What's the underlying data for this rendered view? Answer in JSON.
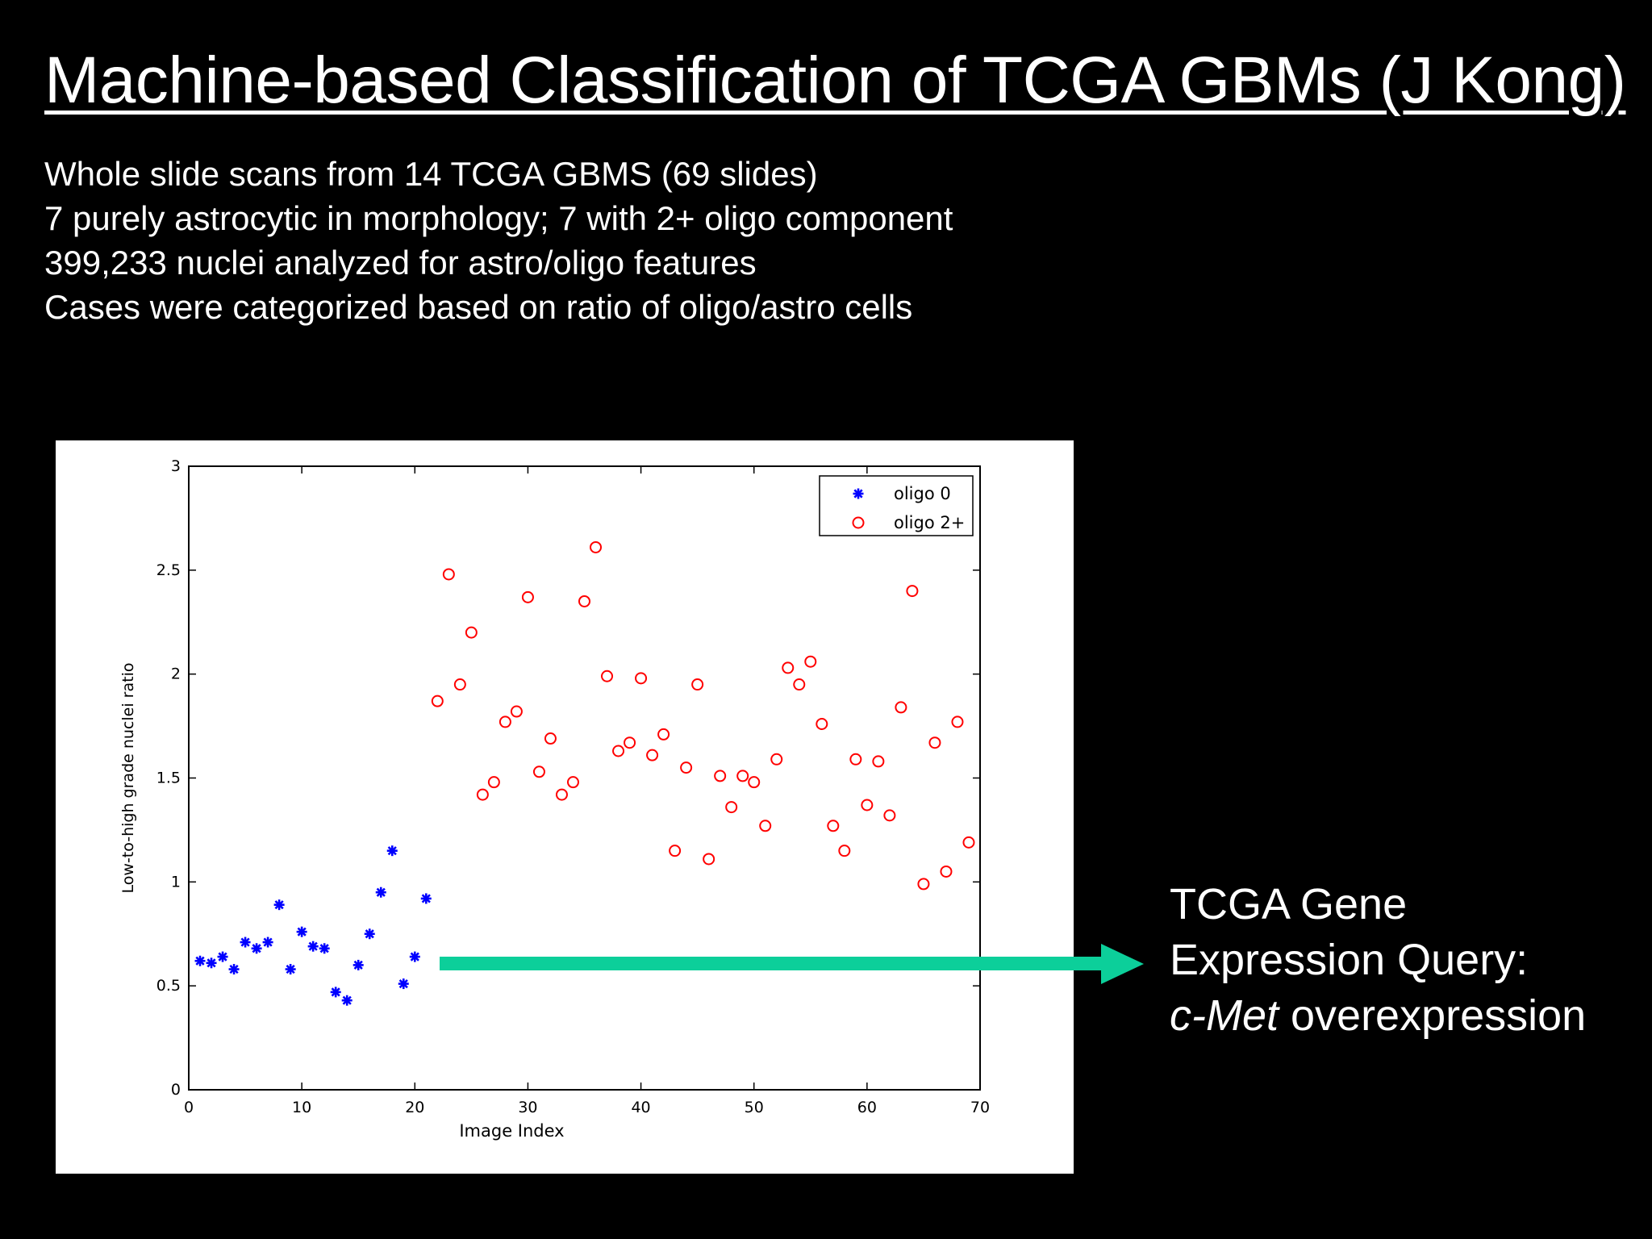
{
  "slide": {
    "title": "Machine-based Classification of TCGA GBMs (J Kong)",
    "bullets": [
      "Whole slide scans from 14 TCGA GBMS (69 slides)",
      "7 purely astrocytic in morphology; 7 with 2+ oligo component",
      "399,233 nuclei analyzed for astro/oligo features",
      "Cases were categorized based on ratio of oligo/astro cells"
    ],
    "callout": {
      "line1": "TCGA Gene",
      "line2": "Expression Query:",
      "line3_italic": "c-Met",
      "line3_rest": " overexpression"
    },
    "arrow_color": "#0ccf9a"
  },
  "chart_data": {
    "type": "scatter",
    "xlabel": "Image Index",
    "ylabel": "Low-to-high grade nuclei ratio",
    "xlim": [
      0,
      70
    ],
    "ylim": [
      0,
      3
    ],
    "xticks": [
      0,
      10,
      20,
      30,
      40,
      50,
      60,
      70
    ],
    "yticks": [
      0,
      0.5,
      1,
      1.5,
      2,
      2.5,
      3
    ],
    "ytick_labels": [
      "0",
      "0.5",
      "1",
      "1.5",
      "2",
      "2.5",
      "3"
    ],
    "grid": false,
    "legend": "top-right",
    "series": [
      {
        "name": "oligo 0",
        "marker": "asterisk",
        "color": "#0000ff",
        "x": [
          1,
          2,
          3,
          4,
          5,
          6,
          7,
          8,
          9,
          10,
          11,
          12,
          13,
          14,
          15,
          16,
          17,
          18,
          19,
          20,
          21
        ],
        "y": [
          0.62,
          0.61,
          0.64,
          0.58,
          0.71,
          0.68,
          0.71,
          0.89,
          0.58,
          0.76,
          0.69,
          0.68,
          0.47,
          0.43,
          0.6,
          0.75,
          0.95,
          1.15,
          0.51,
          0.64,
          0.92
        ]
      },
      {
        "name": "oligo 2+",
        "marker": "circle",
        "color": "#ff0000",
        "x": [
          22,
          23,
          24,
          25,
          26,
          27,
          28,
          29,
          30,
          31,
          32,
          33,
          34,
          35,
          36,
          37,
          38,
          39,
          40,
          41,
          42,
          43,
          44,
          45,
          46,
          47,
          48,
          49,
          50,
          51,
          52,
          53,
          54,
          55,
          56,
          57,
          58,
          59,
          60,
          61,
          62,
          63,
          64,
          65,
          66,
          67,
          68,
          69
        ],
        "y": [
          1.87,
          2.48,
          1.95,
          2.2,
          1.42,
          1.48,
          1.77,
          1.82,
          2.37,
          1.53,
          1.69,
          1.42,
          1.48,
          2.35,
          2.61,
          1.99,
          1.63,
          1.67,
          1.98,
          1.61,
          1.71,
          1.15,
          1.55,
          1.95,
          1.11,
          1.51,
          1.36,
          1.51,
          1.48,
          1.27,
          1.59,
          2.03,
          1.95,
          2.06,
          1.76,
          1.27,
          1.15,
          1.59,
          1.37,
          1.58,
          1.32,
          1.84,
          2.4,
          0.99,
          1.67,
          1.05,
          1.77,
          1.19
        ]
      }
    ]
  }
}
